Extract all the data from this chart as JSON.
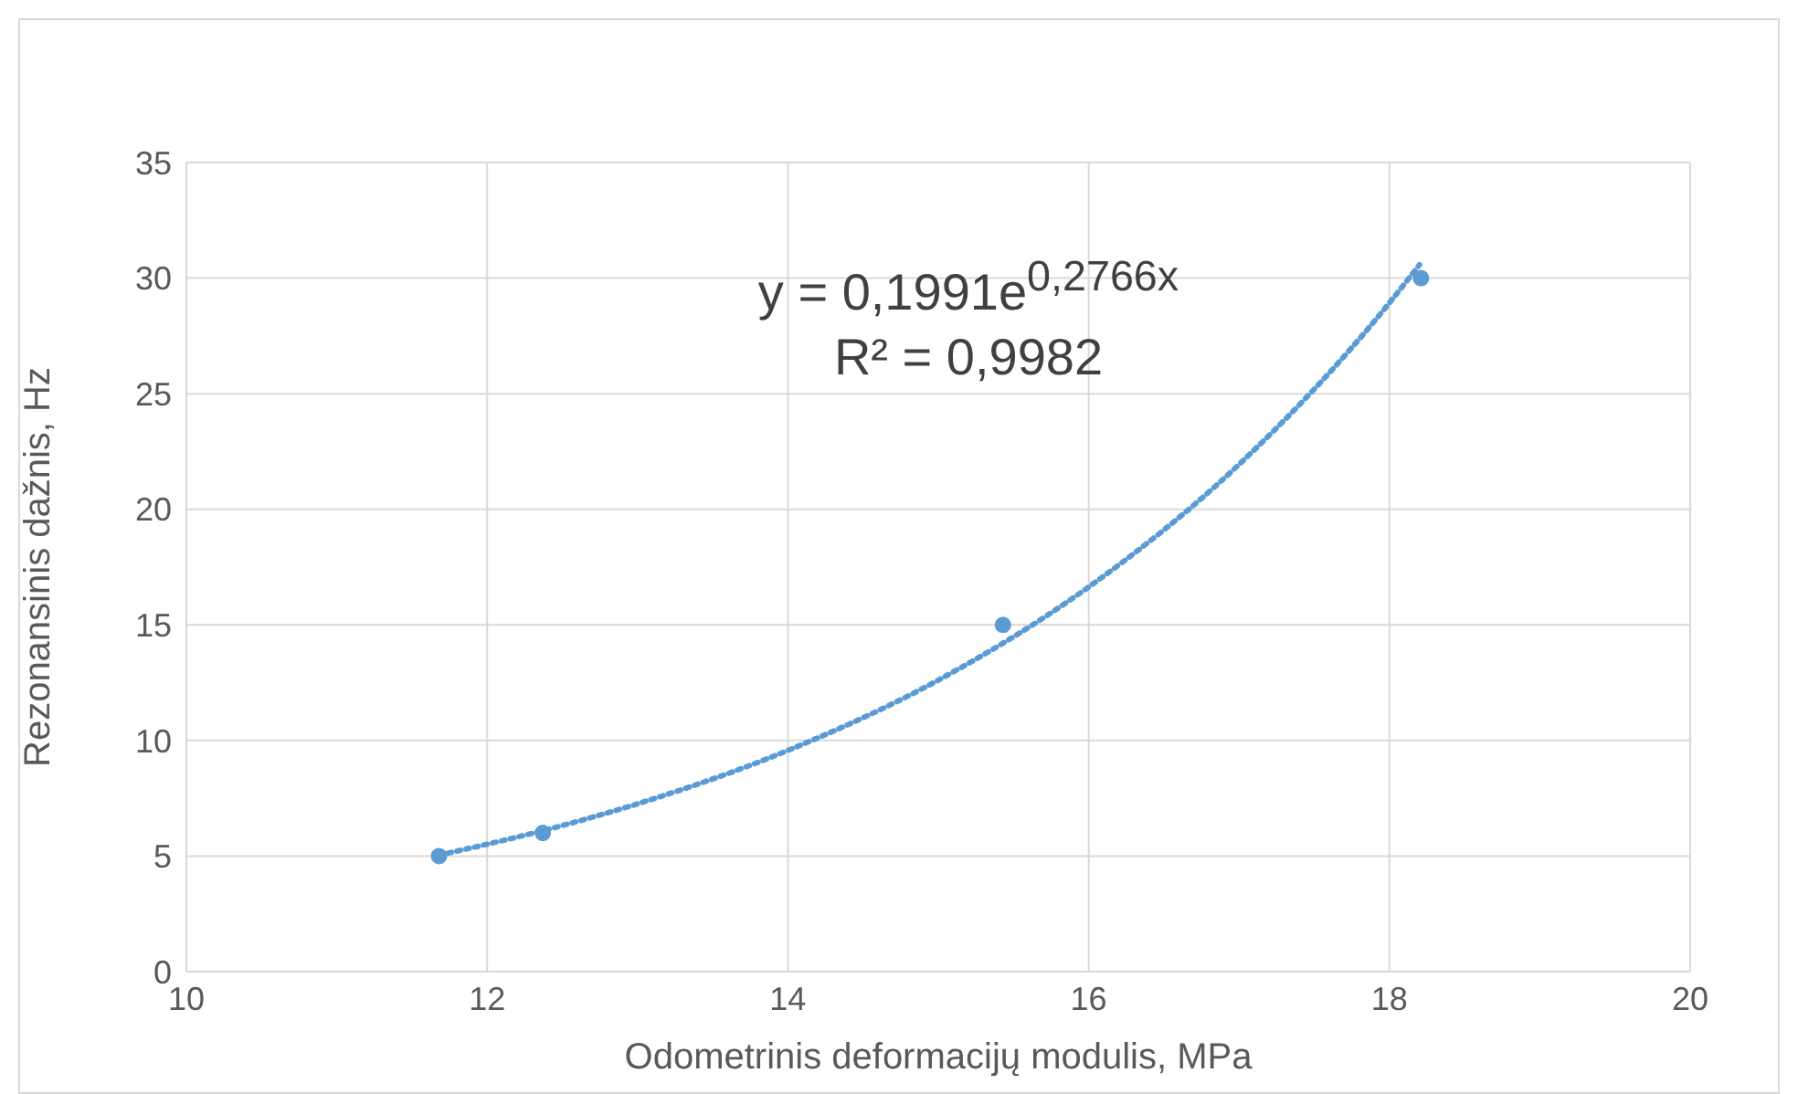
{
  "chart_data": {
    "type": "scatter",
    "xlabel": "Odometrinis deformacijų modulis, MPa",
    "ylabel": "Rezonansinis dažnis, Hz",
    "xlim": [
      10,
      20
    ],
    "xticks": [
      10,
      12,
      14,
      16,
      18,
      20
    ],
    "ylim": [
      0,
      35
    ],
    "yticks": [
      0,
      5,
      10,
      15,
      20,
      25,
      30,
      35
    ],
    "grid": true,
    "annotations": [
      "y = 0,1991e$^{0,2766x}$",
      "R² = 0,9982"
    ],
    "series": [
      {
        "color": "#5b9bd5",
        "marker": "circle",
        "x": [
          11.68,
          12.37,
          15.43,
          18.21
        ],
        "values": [
          5,
          6,
          15,
          30
        ]
      },
      {
        "type": "line",
        "color": "#5b9bd5",
        "line_style": "dotted",
        "marker": "none",
        "x": [
          11.68,
          12.5,
          13,
          14,
          15,
          16,
          17,
          18,
          18.2
        ],
        "values": [
          5.04,
          6.32,
          7.26,
          9.57,
          12.61,
          16.64,
          21.94,
          28.93,
          30.58
        ]
      }
    ]
  }
}
